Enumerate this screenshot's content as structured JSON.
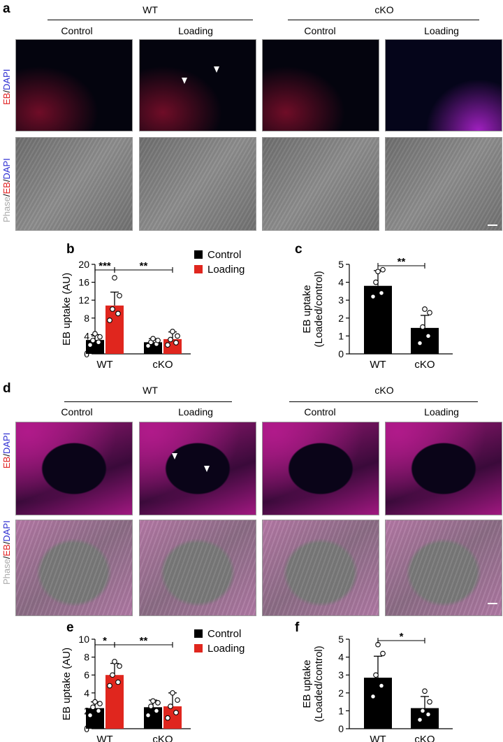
{
  "top": {
    "panel_label": "a",
    "group_wt": "WT",
    "group_cko": "cKO",
    "conditions": [
      "Control",
      "Loading",
      "Control",
      "Loading"
    ],
    "row_labels": {
      "row1": [
        "EB",
        "/",
        "DAPI"
      ],
      "row2": [
        "Phase",
        "/",
        "EB",
        "/",
        "DAPI"
      ]
    }
  },
  "bottom": {
    "panel_label": "d",
    "group_wt": "WT",
    "group_cko": "cKO",
    "conditions": [
      "Control",
      "Loading",
      "Control",
      "Loading"
    ],
    "row_labels": {
      "row1": [
        "EB",
        "/",
        "DAPI"
      ],
      "row2": [
        "Phase",
        "/",
        "EB",
        "/",
        "DAPI"
      ]
    }
  },
  "colors": {
    "control": "#000000",
    "loading": "#e0261e"
  },
  "chart_data": [
    {
      "id": "b",
      "type": "bar",
      "panel_label": "b",
      "categories": [
        "WT",
        "cKO"
      ],
      "series": [
        {
          "name": "Control",
          "values": [
            3.1,
            2.6
          ],
          "errors": [
            1.2,
            0.8
          ],
          "points": [
            [
              2.0,
              2.6,
              3.0,
              3.8,
              4.5
            ],
            [
              1.8,
              2.2,
              2.6,
              3.0,
              3.4
            ]
          ]
        },
        {
          "name": "Loading",
          "values": [
            10.8,
            3.3
          ],
          "errors": [
            3.0,
            1.6
          ],
          "points": [
            [
              7.5,
              9.0,
              10.0,
              13.0,
              17.0
            ],
            [
              2.0,
              2.5,
              3.2,
              4.0,
              5.0
            ]
          ]
        }
      ],
      "ylabel": "EB uptake (AU)",
      "ylim": [
        0,
        20
      ],
      "yticks": [
        0,
        4,
        8,
        12,
        16,
        20
      ],
      "significance": [
        {
          "label": "***",
          "from": "WT-Control",
          "to": "WT-Loading"
        },
        {
          "label": "**",
          "from": "WT-Loading",
          "to": "cKO-Loading"
        }
      ],
      "legend": [
        "Control",
        "Loading"
      ]
    },
    {
      "id": "c",
      "type": "bar",
      "panel_label": "c",
      "categories": [
        "WT",
        "cKO"
      ],
      "values": [
        3.8,
        1.45
      ],
      "errors": [
        0.85,
        0.7
      ],
      "points": [
        [
          3.2,
          3.4,
          4.0,
          4.7,
          4.6
        ],
        [
          0.6,
          1.0,
          1.5,
          2.3,
          2.5
        ]
      ],
      "ylabel_lines": [
        "EB uptake",
        "(Loaded/control)"
      ],
      "ylim": [
        0,
        5
      ],
      "yticks": [
        0,
        1,
        2,
        3,
        4,
        5
      ],
      "significance": [
        {
          "label": "**",
          "from": "WT",
          "to": "cKO"
        }
      ]
    },
    {
      "id": "e",
      "type": "bar",
      "panel_label": "e",
      "categories": [
        "WT",
        "cKO"
      ],
      "series": [
        {
          "name": "Control",
          "values": [
            2.3,
            2.4
          ],
          "errors": [
            0.7,
            0.8
          ],
          "points": [
            [
              1.5,
              2.0,
              2.4,
              2.8,
              3.0
            ],
            [
              1.5,
              2.0,
              2.5,
              2.9,
              3.1
            ]
          ]
        },
        {
          "name": "Loading",
          "values": [
            6.0,
            2.5
          ],
          "errors": [
            1.3,
            1.5
          ],
          "points": [
            [
              4.8,
              5.2,
              6.0,
              7.0,
              7.5
            ],
            [
              1.2,
              1.8,
              2.5,
              3.2,
              4.0
            ]
          ]
        }
      ],
      "ylabel": "EB uptake (AU)",
      "ylim": [
        0,
        10
      ],
      "yticks": [
        0,
        2,
        4,
        6,
        8,
        10
      ],
      "significance": [
        {
          "label": "*",
          "from": "WT-Control",
          "to": "WT-Loading"
        },
        {
          "label": "**",
          "from": "WT-Loading",
          "to": "cKO-Loading"
        }
      ],
      "legend": [
        "Control",
        "Loading"
      ]
    },
    {
      "id": "f",
      "type": "bar",
      "panel_label": "f",
      "categories": [
        "WT",
        "cKO"
      ],
      "values": [
        2.85,
        1.15
      ],
      "errors": [
        1.2,
        0.65
      ],
      "points": [
        [
          1.8,
          2.4,
          3.0,
          4.2,
          4.7
        ],
        [
          0.5,
          0.8,
          1.0,
          1.5,
          2.1
        ]
      ],
      "ylabel_lines": [
        "EB uptake",
        "(Loaded/control)"
      ],
      "ylim": [
        0,
        5
      ],
      "yticks": [
        0,
        1,
        2,
        3,
        4,
        5
      ],
      "significance": [
        {
          "label": "*",
          "from": "WT",
          "to": "cKO"
        }
      ]
    }
  ]
}
